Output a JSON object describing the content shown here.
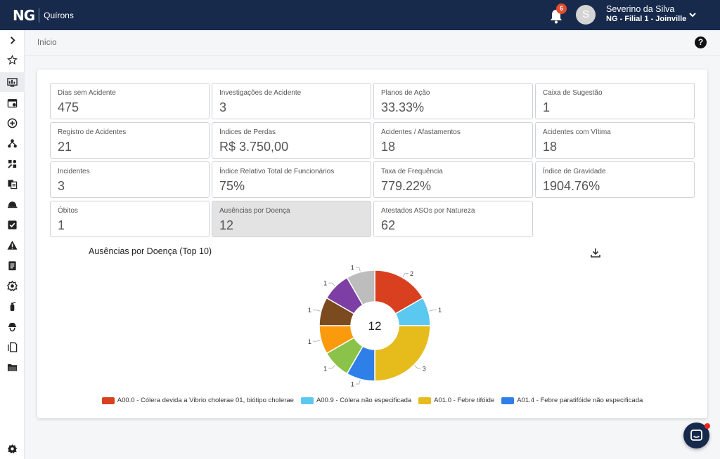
{
  "header": {
    "logo_mark": "NG",
    "logo_name": "Quírons",
    "notifications_count": "6",
    "avatar_initial": "S",
    "user_name": "Severino da Silva",
    "user_branch": "NG - Filial 1 - Joinville"
  },
  "breadcrumb": {
    "current": "Início"
  },
  "kpis": [
    {
      "label": "Dias sem Acidente",
      "value": "475"
    },
    {
      "label": "Investigações de Acidente",
      "value": "3"
    },
    {
      "label": "Planos de Ação",
      "value": "33.33%"
    },
    {
      "label": "Caixa de Sugestão",
      "value": "1"
    },
    {
      "label": "Registro de Acidentes",
      "value": "21"
    },
    {
      "label": "Índices de Perdas",
      "value": "R$ 3.750,00"
    },
    {
      "label": "Acidentes / Afastamentos",
      "value": "18"
    },
    {
      "label": "Acidentes com Vítima",
      "value": "18"
    },
    {
      "label": "Incidentes",
      "value": "3"
    },
    {
      "label": "Índice Relativo Total de Funcionários",
      "value": "75%"
    },
    {
      "label": "Taxa de Frequência",
      "value": "779.22%"
    },
    {
      "label": "Índice de Gravidade",
      "value": "1904.76%"
    },
    {
      "label": "Óbitos",
      "value": "1"
    },
    {
      "label": "Ausências por Doença",
      "value": "12"
    },
    {
      "label": "Atestados ASOs por Natureza",
      "value": "62"
    }
  ],
  "chart_data": {
    "type": "pie",
    "title": "Ausências por Doença (Top 10)",
    "center_label": "12",
    "slices": [
      {
        "name": "A00.0 - Cólera devida a Vibrio cholerae 01, biótipo cholerae",
        "value": 2,
        "color": "#d9401f"
      },
      {
        "name": "A00.9 - Cólera não especificada",
        "value": 1,
        "color": "#5bc8ef"
      },
      {
        "name": "A01.0 - Febre tifóide",
        "value": 3,
        "color": "#e6bb1c"
      },
      {
        "name": "A01.4 - Febre paratifóide não especificada",
        "value": 1,
        "color": "#2f7fe8"
      },
      {
        "name": "",
        "value": 1,
        "color": "#8bc34a"
      },
      {
        "name": "",
        "value": 1,
        "color": "#fb9a0c"
      },
      {
        "name": "",
        "value": 1,
        "color": "#7b4a1e"
      },
      {
        "name": "",
        "value": 1,
        "color": "#7d3fa3"
      },
      {
        "name": "",
        "value": 1,
        "color": "#bdbdbd"
      }
    ],
    "legend_placement": "bottom"
  },
  "sidebar": {
    "icons": [
      "chevron-right-icon",
      "star-icon",
      "dashboard-icon",
      "calendar-icon",
      "add-circle-icon",
      "hierarchy-icon",
      "puzzle-icon",
      "documents-icon",
      "helmet-icon",
      "checkbox-icon",
      "warning-icon",
      "clipboard-icon",
      "settings-gear-icon",
      "extinguisher-icon",
      "worker-icon",
      "copy-icon",
      "folder-icon",
      "settings-icon"
    ]
  },
  "colors": {
    "primary": "#172a4c",
    "badge": "#e24c2c"
  }
}
